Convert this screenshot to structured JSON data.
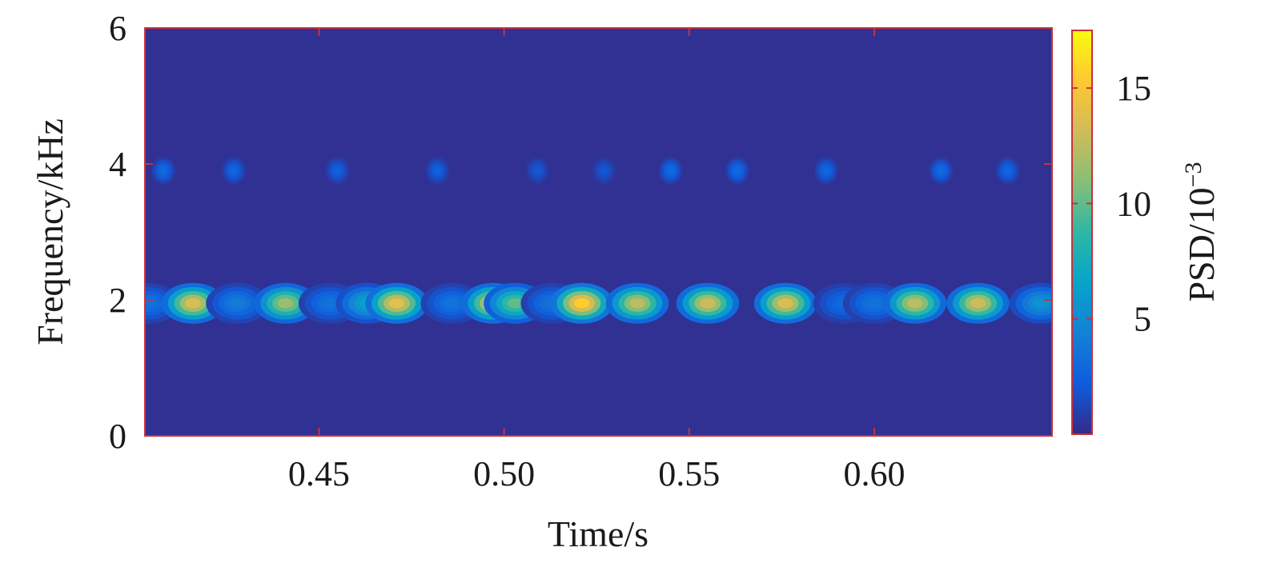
{
  "chart_data": {
    "type": "heatmap",
    "title": "",
    "xlabel": "Time/s",
    "ylabel": "Frequency/kHz",
    "xlim": [
      0.403,
      0.648
    ],
    "ylim": [
      0,
      6
    ],
    "xticks": [
      0.45,
      0.5,
      0.55,
      0.6
    ],
    "xtick_labels": [
      "0.45",
      "0.50",
      "0.55",
      "0.60"
    ],
    "yticks": [
      0,
      2,
      4,
      6
    ],
    "ytick_labels": [
      "0",
      "2",
      "4",
      "6"
    ],
    "colorbar": {
      "label_main": "PSD/10",
      "label_exponent": "−3",
      "range": [
        0,
        17.5
      ],
      "ticks": [
        5,
        10,
        15
      ],
      "tick_labels": [
        "5",
        "10",
        "15"
      ],
      "colormap": [
        "#352a87",
        "#0f5cdd",
        "#1481d6",
        "#06a4ca",
        "#2eb7a4",
        "#87bf77",
        "#d1bb59",
        "#fec832",
        "#f9fb0e"
      ]
    },
    "background_value": 0.3,
    "band_2khz": {
      "frequency_khz": 1.95,
      "blobs": [
        {
          "t": 0.404,
          "psd": 3.5
        },
        {
          "t": 0.416,
          "psd": 13.5
        },
        {
          "t": 0.428,
          "psd": 4.0
        },
        {
          "t": 0.441,
          "psd": 11.5
        },
        {
          "t": 0.453,
          "psd": 3.5
        },
        {
          "t": 0.463,
          "psd": 6.5
        },
        {
          "t": 0.471,
          "psd": 14.0
        },
        {
          "t": 0.486,
          "psd": 3.5
        },
        {
          "t": 0.497,
          "psd": 13.5
        },
        {
          "t": 0.503,
          "psd": 10.0
        },
        {
          "t": 0.513,
          "psd": 3.5
        },
        {
          "t": 0.521,
          "psd": 15.5
        },
        {
          "t": 0.536,
          "psd": 12.5
        },
        {
          "t": 0.555,
          "psd": 13.0
        },
        {
          "t": 0.576,
          "psd": 13.5
        },
        {
          "t": 0.592,
          "psd": 3.0
        },
        {
          "t": 0.6,
          "psd": 3.5
        },
        {
          "t": 0.611,
          "psd": 12.5
        },
        {
          "t": 0.628,
          "psd": 13.0
        },
        {
          "t": 0.645,
          "psd": 5.5
        }
      ]
    },
    "band_4khz": {
      "frequency_khz": 3.9,
      "blobs": [
        {
          "t": 0.408,
          "psd": 3.0
        },
        {
          "t": 0.427,
          "psd": 2.8
        },
        {
          "t": 0.455,
          "psd": 2.5
        },
        {
          "t": 0.482,
          "psd": 2.5
        },
        {
          "t": 0.509,
          "psd": 2.0
        },
        {
          "t": 0.527,
          "psd": 2.0
        },
        {
          "t": 0.545,
          "psd": 3.0
        },
        {
          "t": 0.563,
          "psd": 3.0
        },
        {
          "t": 0.587,
          "psd": 2.8
        },
        {
          "t": 0.618,
          "psd": 3.0
        },
        {
          "t": 0.636,
          "psd": 2.8
        }
      ]
    }
  }
}
